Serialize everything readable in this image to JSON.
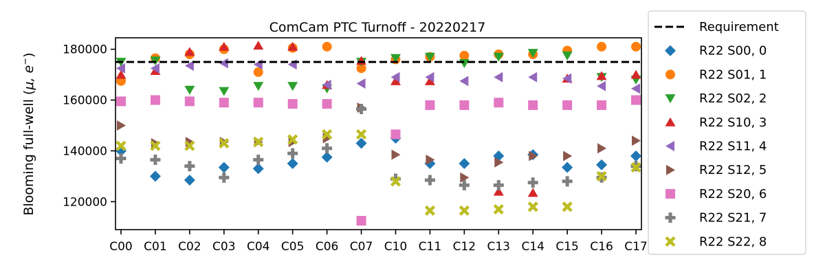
{
  "chart_data": {
    "type": "scatter",
    "title": "ComCam PTC Turnoff - 20220217",
    "xlabel": "",
    "ylabel_main": "Blooming full-well (",
    "ylabel_unit": "μ, e",
    "ylabel_sup": "−",
    "ylabel_close": ")",
    "categories": [
      "C00",
      "C01",
      "C02",
      "C03",
      "C04",
      "C05",
      "C06",
      "C07",
      "C10",
      "C11",
      "C12",
      "C13",
      "C14",
      "C15",
      "C16",
      "C17"
    ],
    "yticks": [
      "120000",
      "140000",
      "160000",
      "180000"
    ],
    "ytick_values": [
      120000,
      140000,
      160000,
      180000
    ],
    "ylim": [
      109000,
      184500
    ],
    "requirement": {
      "label": "Requirement",
      "value": 175000,
      "color": "#000000"
    },
    "legend_position": "outside-right",
    "series": [
      {
        "name": "R22 S00, 0",
        "marker": "diamond",
        "color": "#1f77b4",
        "values": [
          140000,
          130000,
          128500,
          133500,
          133000,
          135000,
          137500,
          143000,
          145000,
          135000,
          135000,
          138000,
          138500,
          133500,
          134500,
          138000
        ]
      },
      {
        "name": "R22 S01, 1",
        "marker": "circle",
        "color": "#ff7f0e",
        "values": [
          167500,
          176500,
          178000,
          180000,
          171000,
          180500,
          181000,
          172500,
          176000,
          177000,
          177500,
          178000,
          178000,
          179500,
          181000,
          181000
        ]
      },
      {
        "name": "R22 S02, 2",
        "marker": "triangle-down",
        "color": "#2ca02c",
        "values": [
          175000,
          175500,
          164000,
          163500,
          165500,
          165500,
          164500,
          175000,
          176500,
          177000,
          174500,
          177000,
          178500,
          177500,
          169000,
          168000
        ]
      },
      {
        "name": "R22 S10, 3",
        "marker": "triangle-up",
        "color": "#d62728",
        "values": [
          170000,
          171500,
          179000,
          181000,
          181500,
          181000,
          166000,
          175500,
          167500,
          167500,
          null,
          124000,
          123500,
          168500,
          169500,
          170000
        ]
      },
      {
        "name": "R22 S11, 4",
        "marker": "triangle-left",
        "color": "#9467bd",
        "values": [
          172500,
          172500,
          173500,
          174500,
          174000,
          174000,
          166000,
          166500,
          169000,
          169000,
          167500,
          169000,
          169000,
          168500,
          165500,
          164500
        ]
      },
      {
        "name": "R22 S12, 5",
        "marker": "triangle-right",
        "color": "#8c564b",
        "values": [
          150000,
          143000,
          143500,
          143500,
          143500,
          143500,
          145000,
          157000,
          138500,
          136500,
          129500,
          135500,
          138000,
          138000,
          141000,
          144000
        ]
      },
      {
        "name": "R22 S20, 6",
        "marker": "square",
        "color": "#e377c2",
        "values": [
          159500,
          160000,
          159500,
          159000,
          159000,
          158500,
          158500,
          112500,
          146500,
          158000,
          158000,
          159000,
          158000,
          158000,
          158000,
          160000
        ]
      },
      {
        "name": "R22 S21, 7",
        "marker": "plus",
        "color": "#7f7f7f",
        "values": [
          137000,
          136500,
          134000,
          129500,
          136500,
          139000,
          141000,
          156500,
          129000,
          128500,
          126500,
          126500,
          127500,
          128000,
          129500,
          134000
        ]
      },
      {
        "name": "R22 S22, 8",
        "marker": "x",
        "color": "#bcbd22",
        "values": [
          142000,
          142000,
          142000,
          143000,
          143500,
          144500,
          146500,
          146500,
          128000,
          116500,
          116500,
          117000,
          118000,
          118000,
          130000,
          133500
        ]
      }
    ]
  }
}
